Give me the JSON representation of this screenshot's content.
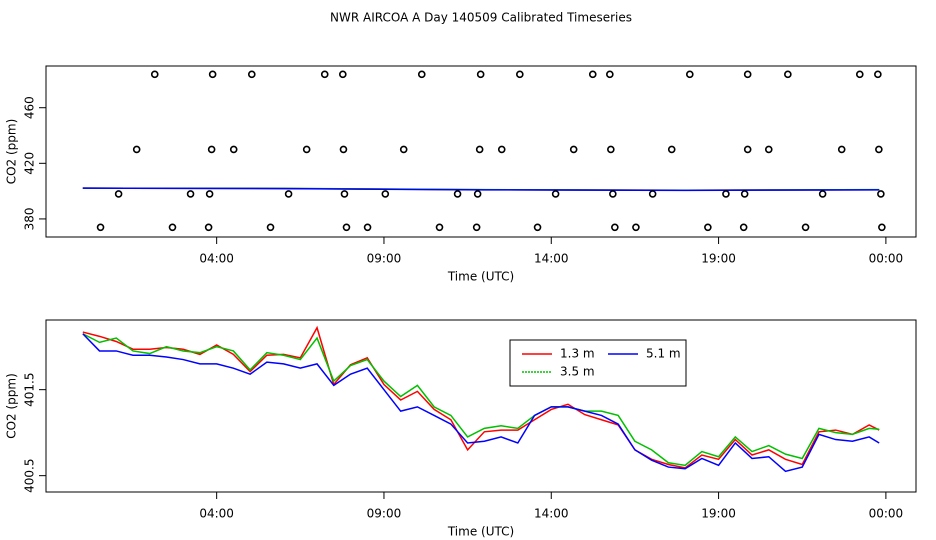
{
  "chart_data": [
    {
      "type": "line",
      "title": "NWR AIRCOA A  Day 140509  Calibrated Timeseries",
      "x_label": "Time (UTC)",
      "y_label": "CO2 (ppm)",
      "xlim": [
        -1.1,
        24.9
      ],
      "ylim": [
        367,
        490
      ],
      "xticks": [
        {
          "value": 4,
          "label": "04:00"
        },
        {
          "value": 9,
          "label": "09:00"
        },
        {
          "value": 14,
          "label": "14:00"
        },
        {
          "value": 19,
          "label": "19:00"
        },
        {
          "value": 24,
          "label": "00:00"
        }
      ],
      "yticks": [
        380,
        420,
        460
      ],
      "series": [
        {
          "type": "line",
          "color": "#ff0000",
          "x": [
            0,
            6,
            12,
            18,
            23.8
          ],
          "values": [
            402.17,
            401.91,
            401.01,
            400.59,
            401.03
          ]
        },
        {
          "type": "line",
          "color": "#00c000",
          "x": [
            0,
            6,
            12,
            18,
            23.8
          ],
          "values": [
            402.15,
            401.95,
            401.05,
            400.62,
            401.04
          ]
        },
        {
          "type": "line",
          "color": "#0000ff",
          "x": [
            0,
            6,
            12,
            18,
            23.8
          ],
          "values": [
            402.15,
            401.8,
            400.9,
            400.58,
            400.88
          ]
        },
        {
          "type": "scatter",
          "color": "#000000",
          "x": [
            2.15,
            3.88,
            5.05,
            7.23,
            7.77,
            10.13,
            11.89,
            13.06,
            15.24,
            15.75,
            18.14,
            19.87,
            21.07,
            23.22,
            23.76,
            1.61,
            3.85,
            4.51,
            6.69,
            7.79,
            9.59,
            11.86,
            12.52,
            14.67,
            15.78,
            17.6,
            19.87,
            20.5,
            22.68,
            23.79,
            1.07,
            3.22,
            3.79,
            6.15,
            7.82,
            9.04,
            11.2,
            11.8,
            14.13,
            15.84,
            17.03,
            19.22,
            19.78,
            22.11,
            23.85,
            0.53,
            2.68,
            3.76,
            5.61,
            7.88,
            8.51,
            10.66,
            11.77,
            13.59,
            15.9,
            16.53,
            18.68,
            19.75,
            21.6,
            23.88
          ],
          "values": [
            484,
            484,
            484,
            484,
            484,
            484,
            484,
            484,
            484,
            484,
            484,
            484,
            484,
            484,
            484,
            430,
            430,
            430,
            430,
            430,
            430,
            430,
            430,
            430,
            430,
            430,
            430,
            430,
            430,
            430,
            398,
            398,
            398,
            398,
            398,
            398,
            398,
            398,
            398,
            398,
            398,
            398,
            398,
            398,
            398,
            374,
            374,
            374,
            374,
            374,
            374,
            374,
            374,
            374,
            374,
            374,
            374,
            374,
            374,
            374
          ]
        }
      ]
    },
    {
      "type": "line",
      "x_label": "Time (UTC)",
      "y_label": "CO2 (ppm)",
      "xlim": [
        -1.1,
        24.9
      ],
      "ylim": [
        400.31,
        402.31
      ],
      "xticks": [
        {
          "value": 4,
          "label": "04:00"
        },
        {
          "value": 9,
          "label": "09:00"
        },
        {
          "value": 14,
          "label": "14:00"
        },
        {
          "value": 19,
          "label": "19:00"
        },
        {
          "value": 24,
          "label": "00:00"
        }
      ],
      "yticks": [
        400.5,
        401.5
      ],
      "legend": "top-right",
      "x": [
        0,
        0.5,
        1,
        1.5,
        2,
        2.5,
        3,
        3.5,
        4,
        4.5,
        5,
        5.5,
        6,
        6.5,
        7,
        7.5,
        8,
        8.5,
        9,
        9.5,
        10,
        10.5,
        11,
        11.5,
        12,
        12.5,
        13,
        13.5,
        14,
        14.5,
        15,
        15.5,
        16,
        16.5,
        17,
        17.5,
        18,
        18.5,
        19,
        19.5,
        20,
        20.5,
        21,
        21.5,
        22,
        22.5,
        23,
        23.5,
        23.8
      ],
      "series": [
        {
          "name": "1.3 m",
          "color": "#ff0000",
          "values": [
            402.17,
            402.12,
            402.06,
            401.97,
            401.97,
            401.99,
            401.97,
            401.91,
            402.02,
            401.91,
            401.71,
            401.9,
            401.91,
            401.87,
            402.22,
            401.56,
            401.79,
            401.87,
            401.56,
            401.38,
            401.48,
            401.27,
            401.15,
            400.8,
            401.01,
            401.03,
            401.03,
            401.15,
            401.27,
            401.33,
            401.21,
            401.15,
            401.09,
            400.8,
            400.69,
            400.63,
            400.59,
            400.74,
            400.69,
            400.92,
            400.74,
            400.8,
            400.69,
            400.63,
            401.01,
            401.03,
            400.98,
            401.09,
            401.03
          ]
        },
        {
          "name": "3.5 m",
          "color": "#00c000",
          "values": [
            402.15,
            402.05,
            402.1,
            401.95,
            401.92,
            402.0,
            401.95,
            401.93,
            402.0,
            401.95,
            401.73,
            401.93,
            401.9,
            401.85,
            402.1,
            401.6,
            401.78,
            401.85,
            401.6,
            401.42,
            401.55,
            401.3,
            401.2,
            400.95,
            401.05,
            401.08,
            401.05,
            401.2,
            401.3,
            401.3,
            401.25,
            401.25,
            401.2,
            400.9,
            400.8,
            400.65,
            400.62,
            400.78,
            400.72,
            400.95,
            400.78,
            400.85,
            400.75,
            400.7,
            401.05,
            401.0,
            400.98,
            401.05,
            401.04
          ]
        },
        {
          "name": "5.1 m",
          "color": "#0000ff",
          "values": [
            402.15,
            401.95,
            401.95,
            401.9,
            401.9,
            401.88,
            401.85,
            401.8,
            401.8,
            401.75,
            401.68,
            401.82,
            401.8,
            401.75,
            401.8,
            401.55,
            401.68,
            401.75,
            401.5,
            401.25,
            401.3,
            401.2,
            401.1,
            400.88,
            400.9,
            400.95,
            400.88,
            401.2,
            401.3,
            401.3,
            401.25,
            401.2,
            401.1,
            400.8,
            400.68,
            400.6,
            400.58,
            400.7,
            400.62,
            400.88,
            400.7,
            400.72,
            400.55,
            400.6,
            400.98,
            400.92,
            400.9,
            400.95,
            400.88
          ]
        }
      ]
    }
  ]
}
